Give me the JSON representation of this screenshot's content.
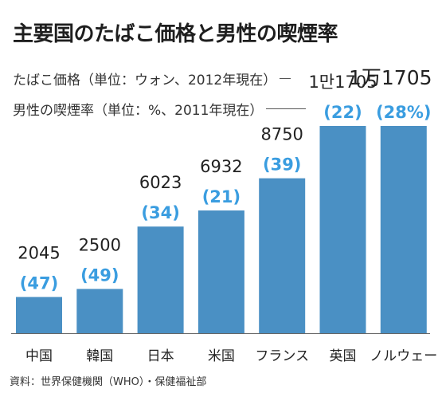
{
  "title": "主要国のたばこ価格と男性の喫煙率",
  "legend": {
    "price_label": "たばこ価格（単位：ウォン、2012年現在）",
    "rate_label": "男性の喫煙率（単位：%、2011年現在）"
  },
  "source": "資料：世界保健機関（WHO）・保健福祉部",
  "colors": {
    "bar": "#4a90c4",
    "rate_text": "#3a9de0",
    "price_text": "#222222",
    "axis": "#666666"
  },
  "chart_data": {
    "type": "bar",
    "categories": [
      "中国",
      "韓国",
      "日本",
      "米国",
      "フランス",
      "英国",
      "ノルウェー"
    ],
    "series": [
      {
        "name": "たばこ価格",
        "values": [
          2045,
          2500,
          6023,
          6932,
          8750,
          11705,
          11705
        ]
      },
      {
        "name": "男性の喫煙率",
        "values": [
          47,
          49,
          34,
          21,
          39,
          22,
          28
        ]
      }
    ],
    "price_labels": [
      "2045",
      "2500",
      "6023",
      "6932",
      "8750",
      "1만1705",
      "1万1705"
    ],
    "rate_labels": [
      "(47)",
      "(49)",
      "(34)",
      "(21)",
      "(39)",
      "(22)",
      "(28%)"
    ]
  }
}
